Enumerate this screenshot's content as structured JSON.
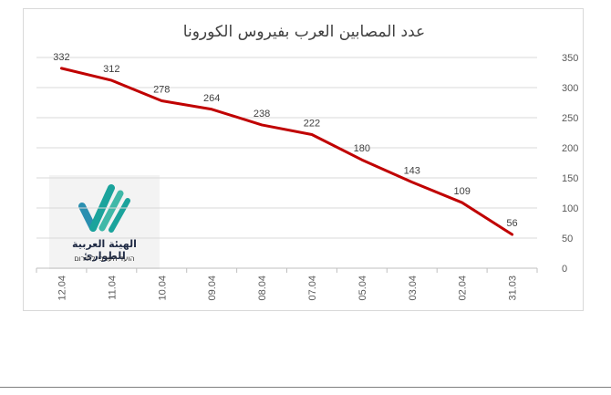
{
  "chart_data": {
    "type": "line",
    "title": "عدد المصابين العرب بفيروس الكورونا",
    "xlabel": "",
    "ylabel": "",
    "categories": [
      "12.04",
      "11.04",
      "10.04",
      "09.04",
      "08.04",
      "07.04",
      "05.04",
      "03.04",
      "02.04",
      "31.03"
    ],
    "series": [
      {
        "values": [
          332,
          312,
          278,
          264,
          238,
          222,
          180,
          143,
          109,
          56
        ]
      }
    ],
    "ylim": [
      0,
      350
    ],
    "yticks": [
      0,
      50,
      100,
      150,
      200,
      250,
      300,
      350
    ],
    "y_axis_position": "right",
    "grid": true,
    "data_labels": true,
    "legend": "none",
    "line_color": "#c00000"
  },
  "watermark": {
    "name": "الهيئة العربية للطوارئ",
    "subtitle": "הועד הערבי לחירום",
    "colors": [
      "#1ba39c",
      "#3fb8a8",
      "#2a8fb0"
    ]
  }
}
